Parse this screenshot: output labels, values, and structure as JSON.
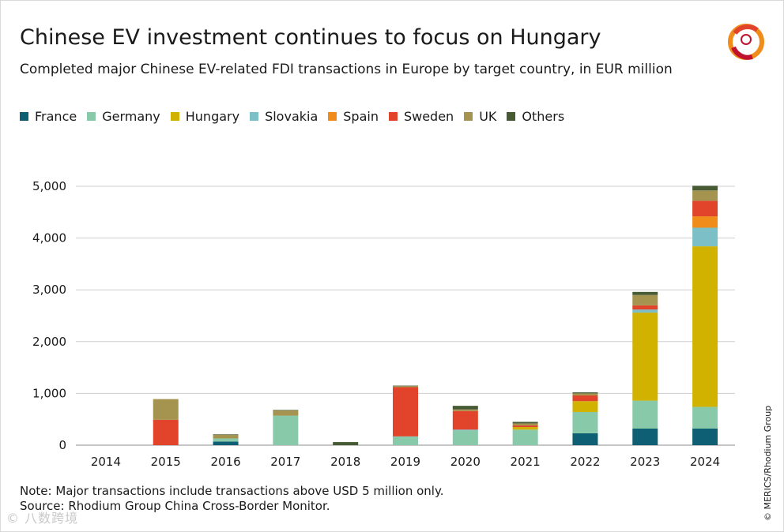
{
  "title": "Chinese EV investment continues to focus on Hungary",
  "subtitle": "Completed major Chinese EV-related FDI transactions in Europe by target country, in EUR million",
  "note_line1": "Note: Major transactions include transactions above USD 5 million only.",
  "note_line2": "Source: Rhodium Group China Cross-Border Monitor.",
  "credit": "© MERICS/Rhodium Group",
  "watermark": "© 八数跨境",
  "chart_data": {
    "type": "bar",
    "stacked": true,
    "categories": [
      "2014",
      "2015",
      "2016",
      "2017",
      "2018",
      "2019",
      "2020",
      "2021",
      "2022",
      "2023",
      "2024"
    ],
    "ylim": [
      0,
      5000
    ],
    "yticks": [
      0,
      1000,
      2000,
      3000,
      4000,
      5000
    ],
    "ytick_labels": [
      "0",
      "1,000",
      "2,000",
      "3,000",
      "4,000",
      "5,000"
    ],
    "grid": true,
    "legend_position": "top-left",
    "series": [
      {
        "name": "France",
        "color": "#0e5f73",
        "values": [
          0,
          0,
          70,
          0,
          0,
          0,
          0,
          0,
          230,
          320,
          320
        ]
      },
      {
        "name": "Germany",
        "color": "#88c9a9",
        "values": [
          0,
          0,
          60,
          570,
          0,
          170,
          280,
          300,
          410,
          540,
          420
        ]
      },
      {
        "name": "Hungary",
        "color": "#d1b200",
        "values": [
          0,
          0,
          0,
          0,
          0,
          0,
          0,
          50,
          210,
          1700,
          3100
        ]
      },
      {
        "name": "Slovakia",
        "color": "#7cbfc7",
        "values": [
          0,
          0,
          0,
          0,
          0,
          0,
          20,
          0,
          0,
          60,
          360
        ]
      },
      {
        "name": "Spain",
        "color": "#f08c1a",
        "values": [
          0,
          0,
          0,
          0,
          0,
          0,
          0,
          0,
          0,
          0,
          220
        ]
      },
      {
        "name": "Sweden",
        "color": "#e2432b",
        "values": [
          0,
          490,
          0,
          0,
          0,
          950,
          360,
          30,
          110,
          80,
          300
        ]
      },
      {
        "name": "UK",
        "color": "#a59450",
        "values": [
          0,
          400,
          70,
          100,
          0,
          20,
          30,
          40,
          40,
          200,
          200
        ]
      },
      {
        "name": "Others",
        "color": "#465a33",
        "values": [
          0,
          0,
          10,
          10,
          60,
          10,
          70,
          30,
          20,
          60,
          90
        ]
      }
    ]
  }
}
